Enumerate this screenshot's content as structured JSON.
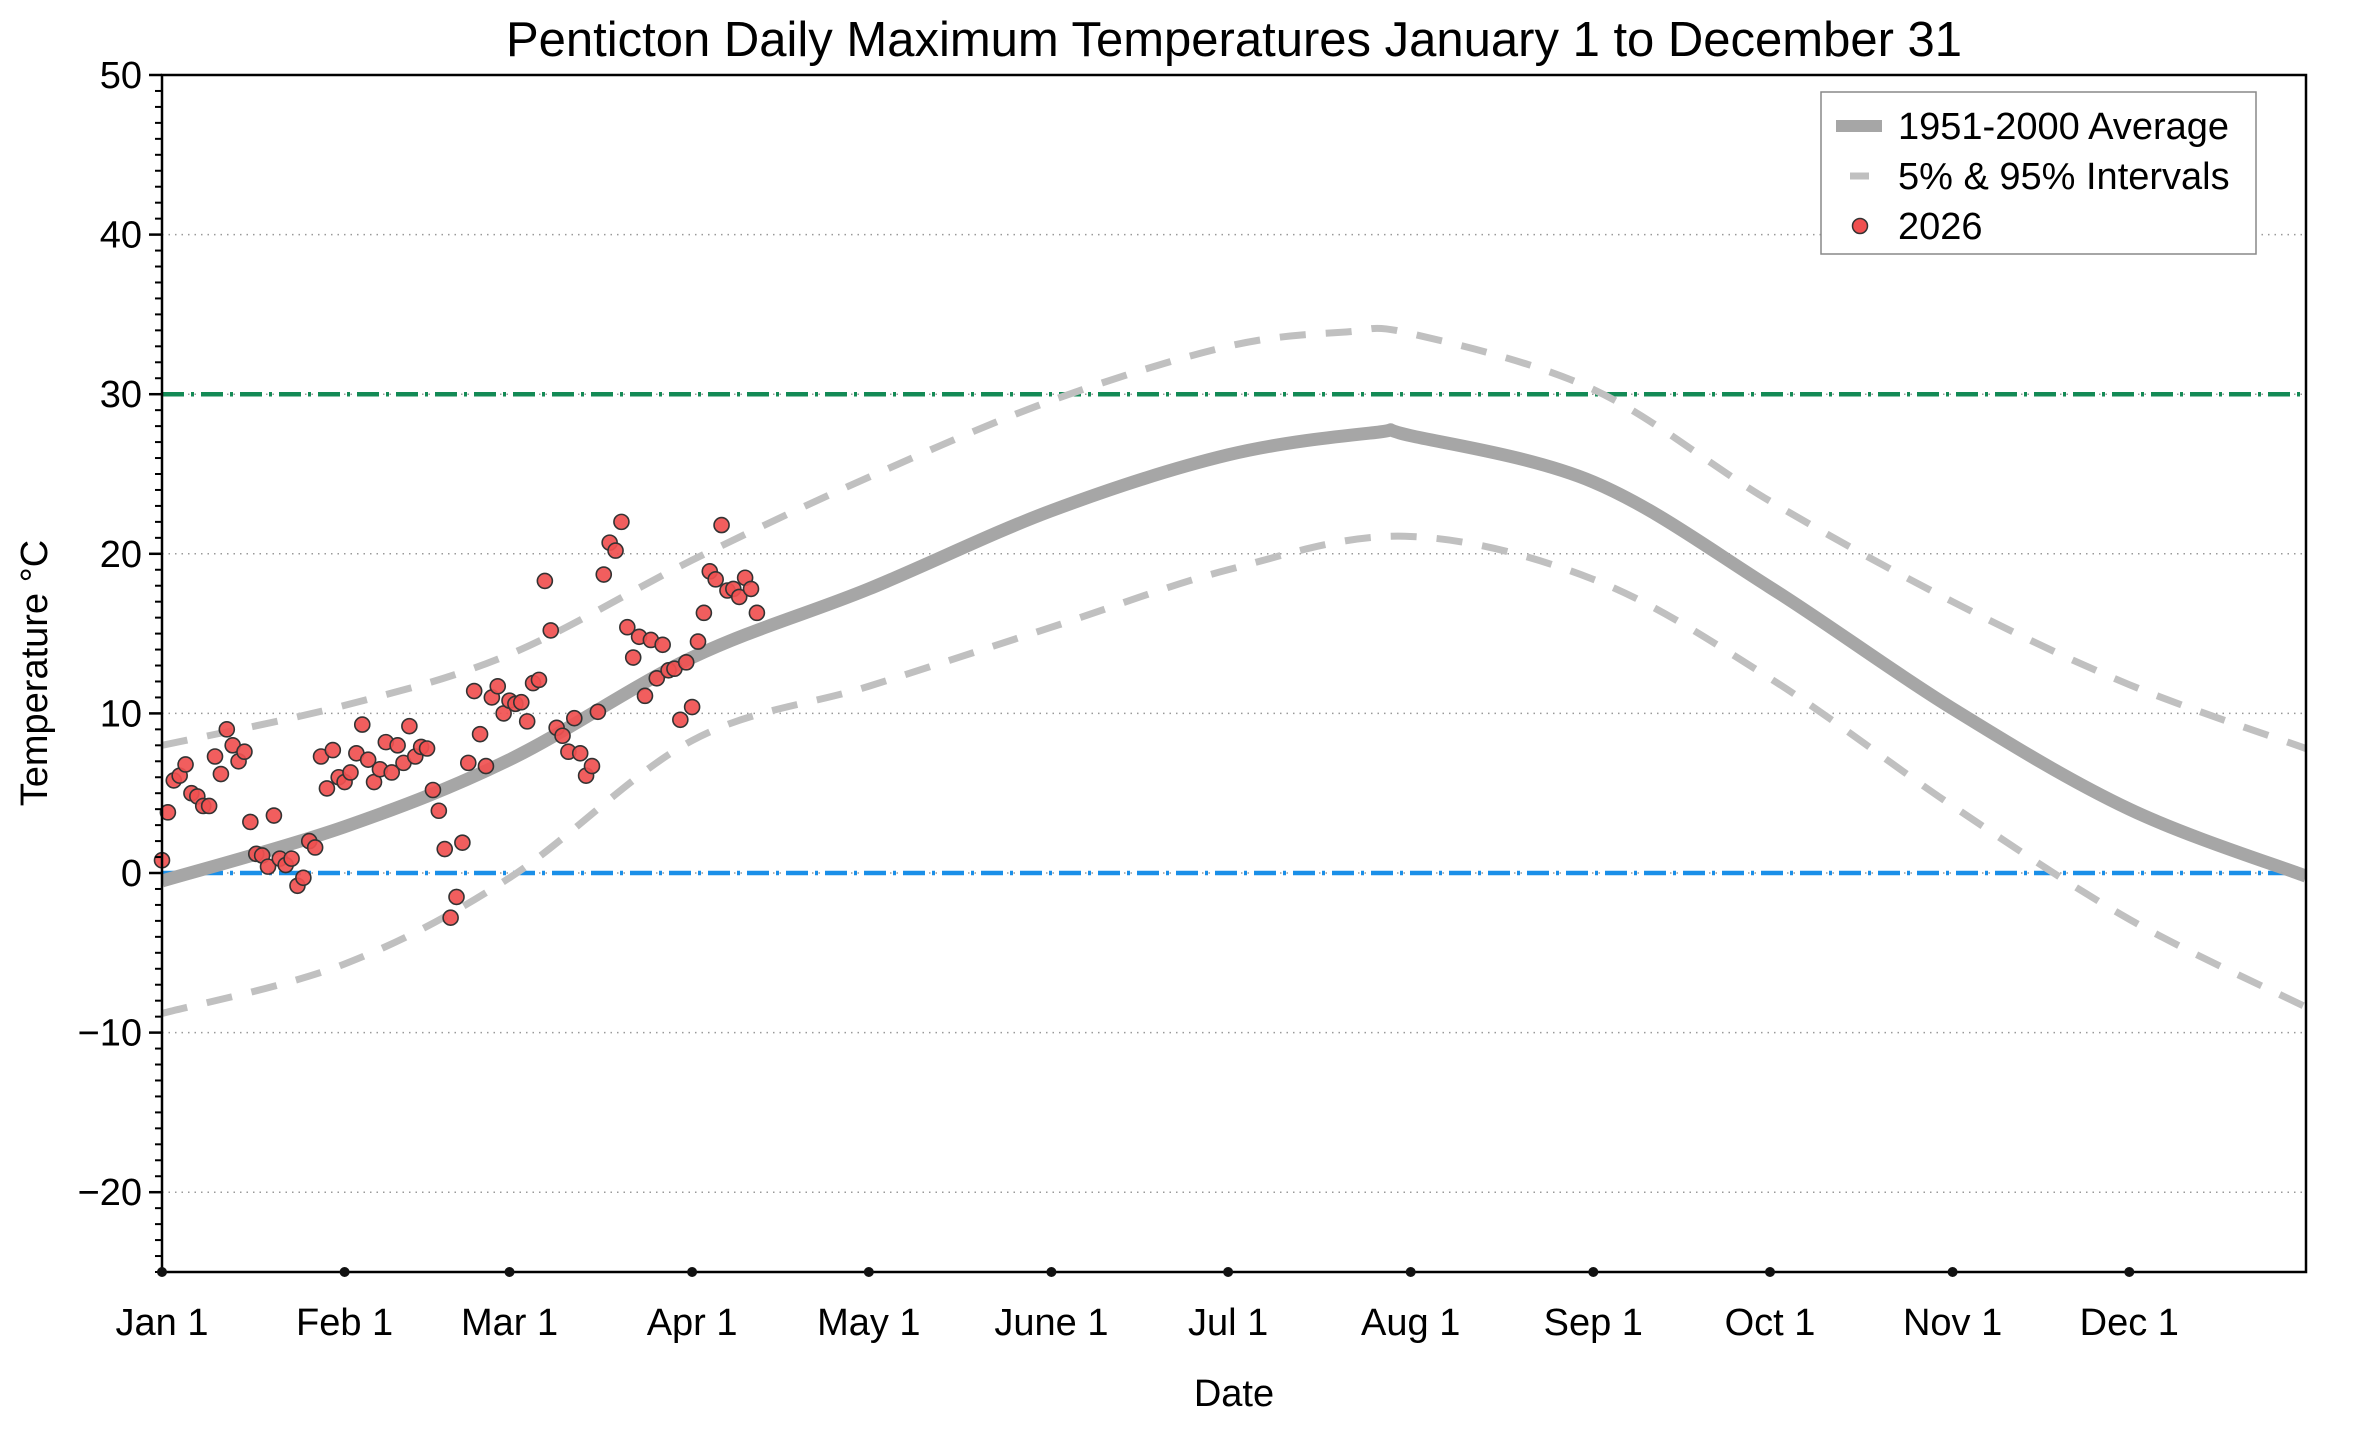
{
  "chart_data": {
    "type": "scatter",
    "title": "Penticton Daily Maximum Temperatures January 1 to December 31",
    "xlabel": "Date",
    "ylabel": "Temperature °C",
    "xlim_days": [
      0,
      364
    ],
    "ylim": [
      -25,
      50
    ],
    "y_major_ticks": [
      -20,
      -10,
      0,
      10,
      20,
      30,
      40,
      50
    ],
    "y_minor_step": 1,
    "grid": "horizontal dotted at major ticks",
    "x_ticks": [
      {
        "label": "Jan 1",
        "day": 0
      },
      {
        "label": "Feb 1",
        "day": 31
      },
      {
        "label": "Mar 1",
        "day": 59
      },
      {
        "label": "Apr 1",
        "day": 90
      },
      {
        "label": "May 1",
        "day": 120
      },
      {
        "label": "June 1",
        "day": 151
      },
      {
        "label": "Jul 1",
        "day": 181
      },
      {
        "label": "Aug 1",
        "day": 212
      },
      {
        "label": "Sep 1",
        "day": 243
      },
      {
        "label": "Oct 1",
        "day": 273
      },
      {
        "label": "Nov 1",
        "day": 304
      },
      {
        "label": "Dec 1",
        "day": 334
      }
    ],
    "reference_lines": [
      {
        "name": "hot-threshold",
        "value": 30,
        "color": "#138a55",
        "style": "dash-dot"
      },
      {
        "name": "freezing-line",
        "value": 0,
        "color": "#1a8fe8",
        "style": "dash-dot"
      }
    ],
    "legend": {
      "placement": "top-right",
      "entries": [
        {
          "label": "1951-2000 Average",
          "kind": "thick-line",
          "color": "#a6a6a6"
        },
        {
          "label": "5% & 95% Intervals",
          "kind": "dashed-line",
          "color": "#c0c0c0"
        },
        {
          "label": "2026",
          "kind": "marker",
          "color": "#f05050"
        }
      ]
    },
    "series": [
      {
        "name": "1951-2000 Average",
        "color": "#a6a6a6",
        "days": [
          0,
          31,
          59,
          90,
          120,
          151,
          181,
          206,
          212,
          243,
          273,
          304,
          334,
          364
        ],
        "values": [
          -0.5,
          2.9,
          7.1,
          13.5,
          17.8,
          22.7,
          26.2,
          27.6,
          27.4,
          24.5,
          17.9,
          10.3,
          4.0,
          -0.2
        ]
      },
      {
        "name": "95% Interval",
        "color": "#c0c0c0",
        "days": [
          0,
          31,
          59,
          90,
          120,
          151,
          181,
          201,
          212,
          243,
          273,
          304,
          334,
          364
        ],
        "values": [
          8.0,
          10.5,
          13.7,
          19.6,
          24.8,
          29.6,
          33.0,
          33.9,
          33.8,
          30.3,
          23.3,
          17.0,
          11.8,
          7.8
        ]
      },
      {
        "name": "5% Interval",
        "color": "#c0c0c0",
        "days": [
          0,
          31,
          59,
          90,
          120,
          151,
          181,
          211,
          243,
          273,
          304,
          334,
          364
        ],
        "values": [
          -8.8,
          -5.7,
          -0.3,
          8.3,
          11.7,
          15.4,
          19.0,
          21.1,
          18.4,
          12.2,
          4.2,
          -2.9,
          -8.4
        ]
      },
      {
        "name": "2026",
        "color": "#f05050",
        "start_day": 0,
        "values": [
          0.8,
          3.8,
          5.8,
          6.1,
          6.8,
          5.0,
          4.8,
          4.2,
          4.2,
          7.3,
          6.2,
          9.0,
          8.0,
          7.0,
          7.6,
          3.2,
          1.2,
          1.1,
          0.4,
          3.6,
          0.9,
          0.5,
          0.9,
          -0.8,
          -0.3,
          2.0,
          1.6,
          7.3,
          5.3,
          7.7,
          6.0,
          5.7,
          6.3,
          7.5,
          9.3,
          7.1,
          5.7,
          6.5,
          8.2,
          6.3,
          8.0,
          6.9,
          9.2,
          7.3,
          7.9,
          7.8,
          5.2,
          3.9,
          1.5,
          -2.8,
          -1.5,
          1.9,
          6.9,
          11.4,
          8.7,
          6.7,
          11.0,
          11.7,
          10.0,
          10.8,
          10.6,
          10.7,
          9.5,
          11.9,
          12.1,
          18.3,
          15.2,
          9.1,
          8.6,
          7.6,
          9.7,
          7.5,
          6.1,
          6.7,
          10.1,
          18.7,
          20.7,
          20.2,
          22.0,
          15.4,
          13.5,
          14.8,
          11.1,
          14.6,
          12.2,
          14.3,
          12.7,
          12.8,
          9.6,
          13.2,
          10.4,
          14.5,
          16.3,
          18.9,
          18.4,
          21.8,
          17.7,
          17.8,
          17.3,
          18.5,
          17.8,
          16.3
        ]
      }
    ]
  }
}
